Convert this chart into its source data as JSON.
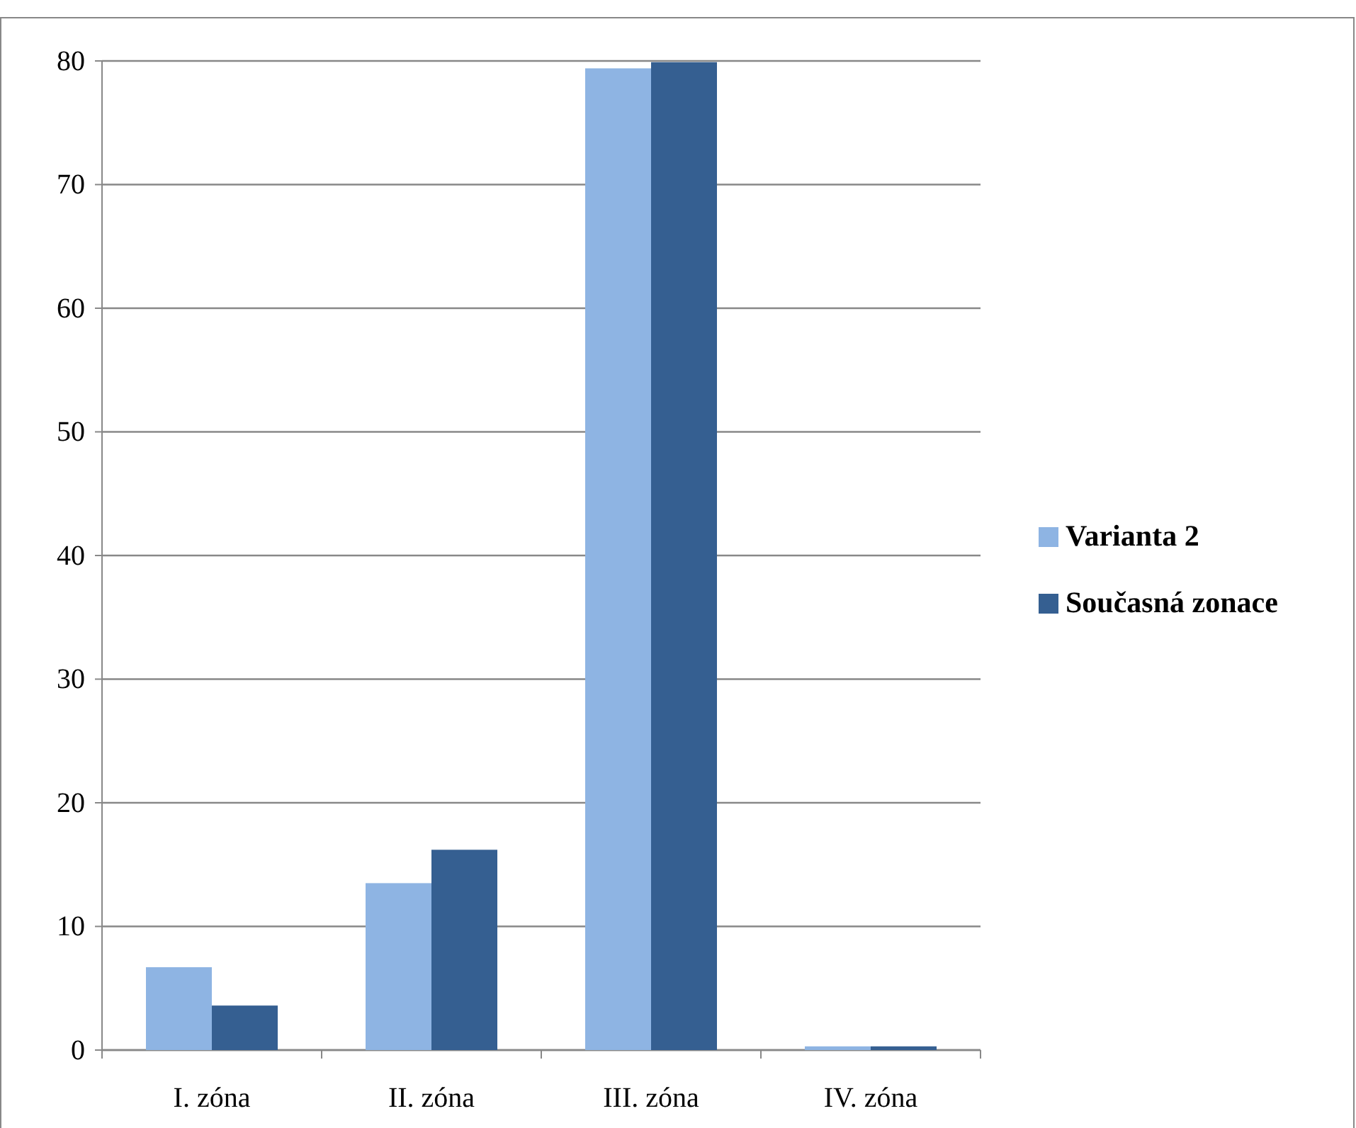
{
  "chart_data": {
    "type": "bar",
    "categories": [
      "I. zóna",
      "II. zóna",
      "III. zóna",
      "IV. zóna"
    ],
    "series": [
      {
        "name": "Varianta 2",
        "color": "#8eb4e3",
        "values": [
          6.7,
          13.5,
          79.4,
          0.3
        ]
      },
      {
        "name": "Současná zonace",
        "color": "#355f91",
        "values": [
          3.6,
          16.2,
          79.9,
          0.3
        ]
      }
    ],
    "ylim": [
      0,
      80
    ],
    "yticks": [
      0,
      10,
      20,
      30,
      40,
      50,
      60,
      70,
      80
    ],
    "grid": "y",
    "legend": "right"
  }
}
